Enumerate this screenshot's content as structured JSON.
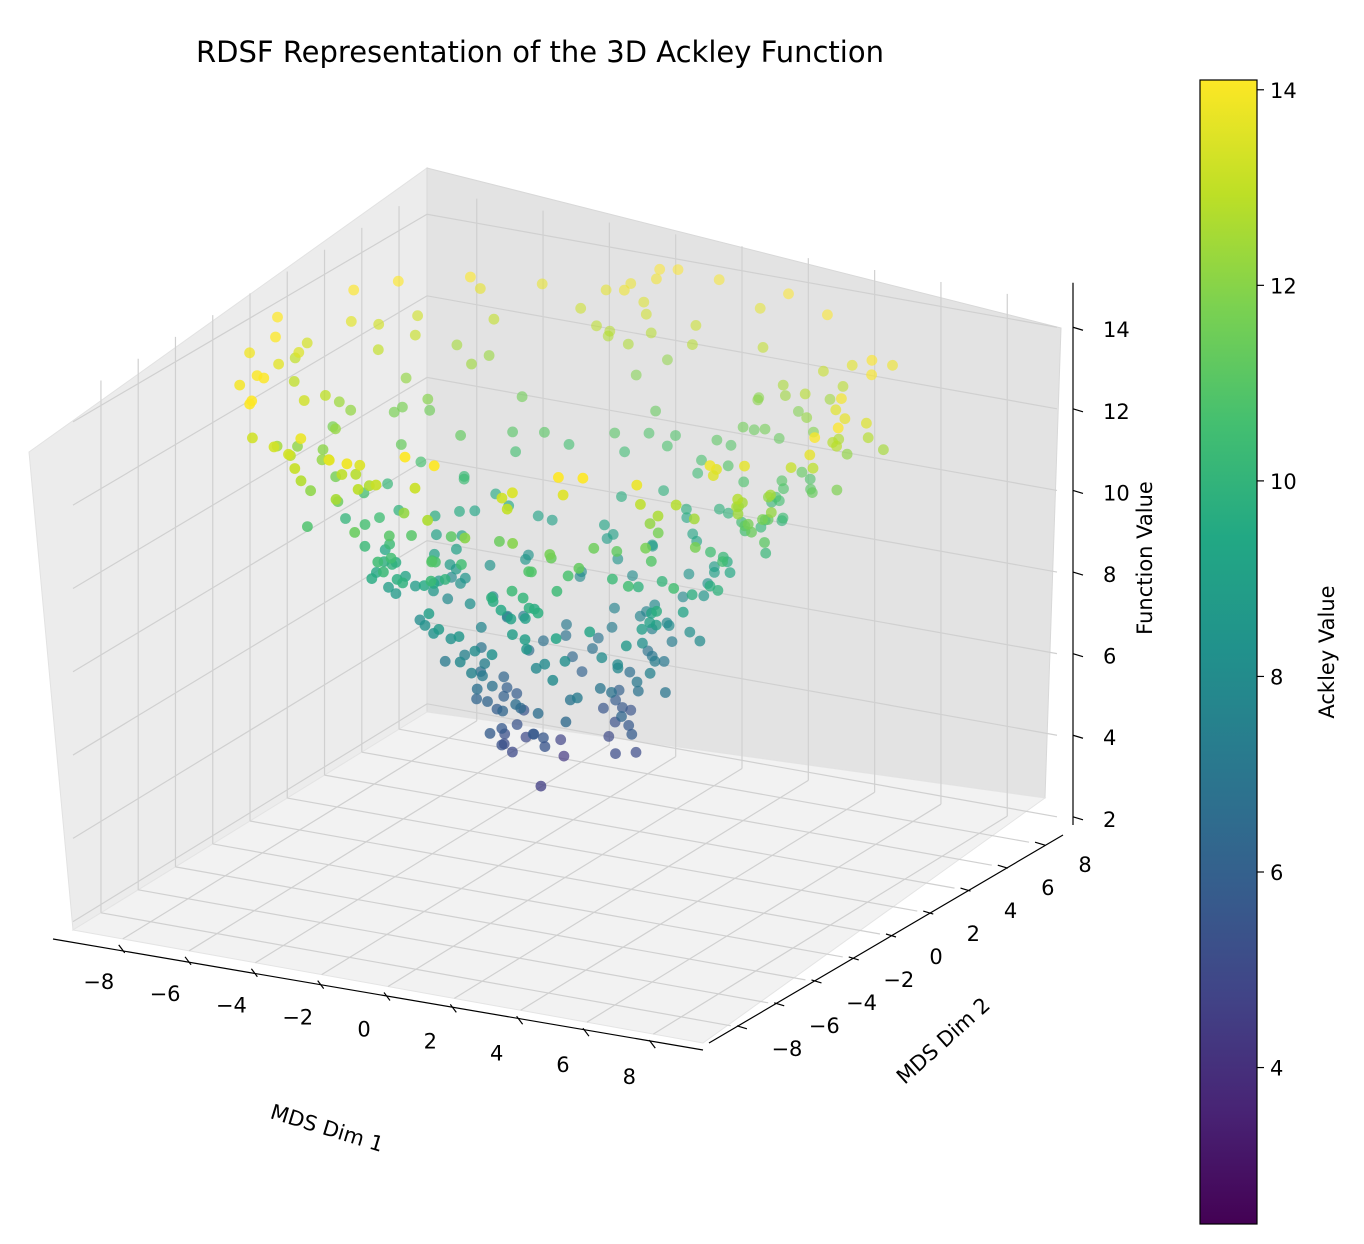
{
  "chart_data": {
    "type": "scatter",
    "projection": "3d",
    "title": "RDSF Representation of the 3D Ackley Function",
    "xlabel": "MDS Dim 1",
    "ylabel": "MDS Dim 2",
    "zlabel": "Function Value",
    "colorbar_label": "Ackley Value",
    "colormap": "viridis",
    "xlim": [
      -9.5,
      9.5
    ],
    "ylim": [
      -9.5,
      9.5
    ],
    "zlim": [
      1.8,
      14.6
    ],
    "color_range": [
      2.4,
      14.1
    ],
    "x_ticks": [
      "−8",
      "−6",
      "−4",
      "−2",
      "0",
      "2",
      "4",
      "6",
      "8"
    ],
    "y_ticks": [
      "−8",
      "−6",
      "−4",
      "−2",
      "0",
      "2",
      "4",
      "6",
      "8"
    ],
    "z_ticks": [
      "2",
      "4",
      "6",
      "8",
      "10",
      "12",
      "14"
    ],
    "colorbar_ticks": [
      "4",
      "6",
      "8",
      "10",
      "12",
      "14"
    ],
    "x_tick_values": [
      -8,
      -6,
      -4,
      -2,
      0,
      2,
      4,
      6,
      8
    ],
    "y_tick_values": [
      -8,
      -6,
      -4,
      -2,
      0,
      2,
      4,
      6,
      8
    ],
    "z_tick_values": [
      2,
      4,
      6,
      8,
      10,
      12,
      14
    ],
    "colorbar_tick_values": [
      4,
      6,
      8,
      10,
      12,
      14
    ],
    "point_count": 430,
    "point_model": "ackley-like bowl: z = 2.5 + 12 * (r/9)^0.8 + noise, r = distance from origin"
  }
}
